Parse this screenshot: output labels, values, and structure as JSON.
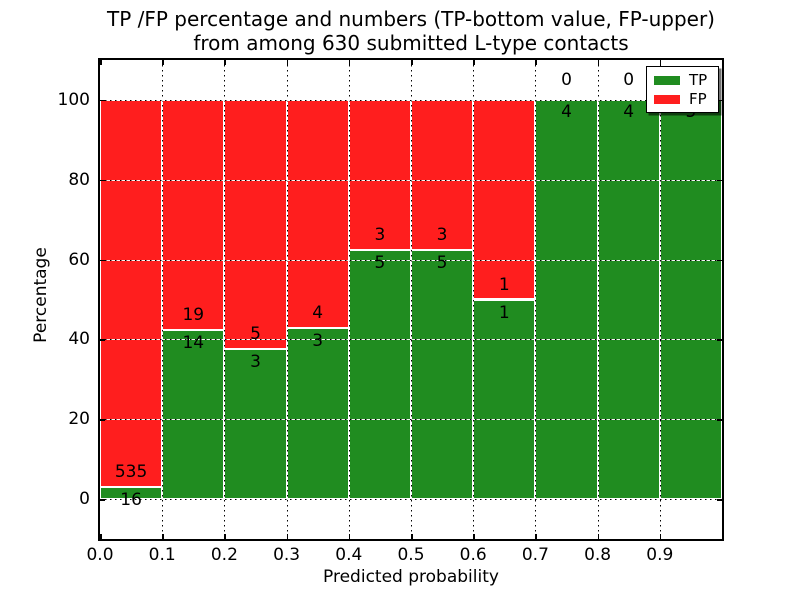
{
  "figure": {
    "title_line1": "TP /FP percentage and numbers (TP-bottom value, FP-upper)",
    "title_line2": "from among 630 submitted L-type contacts",
    "xlabel": "Predicted probability",
    "ylabel": "Percentage"
  },
  "legend": {
    "position": "upper right",
    "items": [
      {
        "label": "TP",
        "color": "#208C20"
      },
      {
        "label": "FP",
        "color": "#FF1E1E"
      }
    ]
  },
  "chart_data": {
    "type": "bar",
    "stacked": true,
    "title": "TP /FP percentage and numbers (TP-bottom value, FP-upper) from among 630 submitted L-type contacts",
    "xlabel": "Predicted probability",
    "ylabel": "Percentage",
    "total_contacts": 630,
    "x_bins": [
      [
        0.0,
        0.1
      ],
      [
        0.1,
        0.2
      ],
      [
        0.2,
        0.3
      ],
      [
        0.3,
        0.4
      ],
      [
        0.4,
        0.5
      ],
      [
        0.5,
        0.6
      ],
      [
        0.6,
        0.7
      ],
      [
        0.7,
        0.8
      ],
      [
        0.8,
        0.9
      ],
      [
        0.9,
        1.0
      ]
    ],
    "xticks": [
      "0.0",
      "0.1",
      "0.2",
      "0.3",
      "0.4",
      "0.5",
      "0.6",
      "0.7",
      "0.8",
      "0.9"
    ],
    "yticks": [
      0,
      20,
      40,
      60,
      80,
      100
    ],
    "ylim": [
      -10,
      110
    ],
    "grid": true,
    "series": [
      {
        "name": "TP",
        "color": "#208C20",
        "counts": [
          16,
          14,
          3,
          3,
          5,
          5,
          1,
          4,
          4,
          5
        ]
      },
      {
        "name": "FP",
        "color": "#FF1E1E",
        "counts": [
          535,
          19,
          5,
          4,
          3,
          3,
          1,
          0,
          0,
          0
        ]
      }
    ],
    "tp_percent_of_bin": [
      2.9,
      42.4,
      37.5,
      42.9,
      62.5,
      62.5,
      50.0,
      100.0,
      100.0,
      100.0
    ]
  }
}
